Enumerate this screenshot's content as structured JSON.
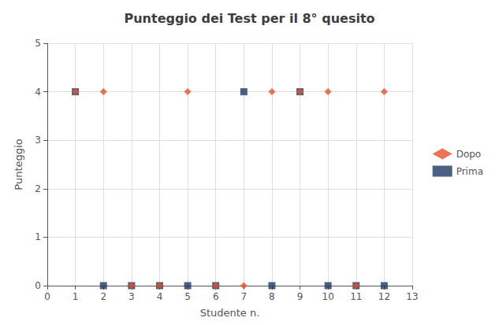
{
  "chart_data": {
    "type": "scatter",
    "title": "Punteggio dei Test per il 8° quesito",
    "xlabel": "Studente n.",
    "ylabel": "Punteggio",
    "x": [
      1,
      2,
      3,
      4,
      5,
      6,
      7,
      8,
      9,
      10,
      11,
      12
    ],
    "series": [
      {
        "name": "Prima",
        "color": "#1F3864",
        "marker": "square",
        "values": [
          4,
          0,
          0,
          0,
          0,
          0,
          4,
          0,
          4,
          0,
          0,
          0
        ]
      },
      {
        "name": "Dopo",
        "color": "#E8502A",
        "marker": "diamond",
        "values": [
          4,
          4,
          0,
          0,
          4,
          0,
          0,
          4,
          4,
          4,
          0,
          4
        ]
      }
    ],
    "xlim": [
      0,
      13
    ],
    "ylim": [
      0,
      5
    ],
    "xticks": [
      0,
      1,
      2,
      3,
      4,
      5,
      6,
      7,
      8,
      9,
      10,
      11,
      12,
      13
    ],
    "yticks": [
      0,
      1,
      2,
      3,
      4,
      5
    ],
    "grid": true,
    "legend": "right"
  }
}
